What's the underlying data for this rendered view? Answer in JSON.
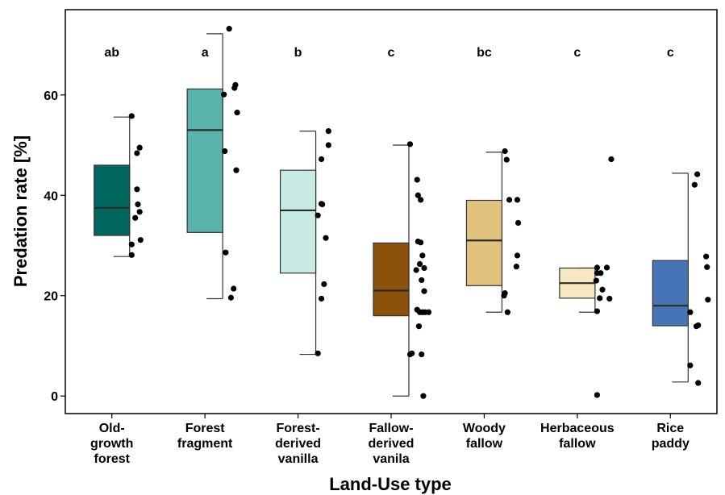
{
  "chart_data": {
    "type": "box",
    "ylabel": "Predation  rate [%]",
    "xlabel": "Land-Use type",
    "ylim": [
      -3.5,
      77
    ],
    "yticks": [
      0,
      20,
      40,
      60
    ],
    "grid": false,
    "legend": "none",
    "categories": [
      {
        "label": [
          "Old-",
          "growth",
          "forest"
        ],
        "letter": "ab",
        "color": "#01665e",
        "box": {
          "min": 27.8,
          "q1": 32,
          "median": 37.5,
          "q3": 46,
          "max": 55.6
        },
        "points": [
          [
            1.06,
            55.8
          ],
          [
            1.12,
            48.4
          ],
          [
            1.15,
            49.5
          ],
          [
            1.12,
            41.2
          ],
          [
            1.13,
            38.2
          ],
          [
            1.1,
            35.5
          ],
          [
            1.15,
            36.7
          ],
          [
            1.06,
            30.2
          ],
          [
            1.06,
            28.1
          ],
          [
            1.16,
            31.1
          ]
        ]
      },
      {
        "label": [
          "Forest",
          "fragment"
        ],
        "letter": "a",
        "color": "#5ab4ac",
        "box": {
          "min": 19.4,
          "q1": 32.6,
          "median": 53,
          "q3": 61.2,
          "max": 72.2
        },
        "points": [
          [
            1.11,
            73.2
          ],
          [
            1.05,
            60.1
          ],
          [
            1.17,
            61.4
          ],
          [
            1.18,
            62
          ],
          [
            1.2,
            56.5
          ],
          [
            1.06,
            48.8
          ],
          [
            1.19,
            45
          ],
          [
            1.07,
            28.6
          ],
          [
            1.16,
            21.4
          ],
          [
            1.13,
            19.6
          ]
        ]
      },
      {
        "label": [
          "Forest-",
          "derived",
          "vanilla"
        ],
        "letter": "b",
        "color": "#c7eae5",
        "box": {
          "min": 8.3,
          "q1": 24.5,
          "median": 37,
          "q3": 45,
          "max": 52.8
        },
        "points": [
          [
            1.18,
            52.8
          ],
          [
            1.18,
            50
          ],
          [
            1.1,
            47.2
          ],
          [
            1.1,
            38.3
          ],
          [
            1.11,
            38.2
          ],
          [
            1.06,
            36
          ],
          [
            1.15,
            31.5
          ],
          [
            1.13,
            22.3
          ],
          [
            1.1,
            19.4
          ],
          [
            1.06,
            8.5
          ]
        ]
      },
      {
        "label": [
          "Fallow-",
          "derived",
          "vanila"
        ],
        "letter": "c",
        "color": "#8c510a",
        "box": {
          "min": 0,
          "q1": 16,
          "median": 21,
          "q3": 30.5,
          "max": 50
        },
        "points": [
          [
            1.05,
            50.2
          ],
          [
            1.13,
            43.1
          ],
          [
            1.14,
            40
          ],
          [
            1.17,
            39.1
          ],
          [
            1.14,
            30.8
          ],
          [
            1.17,
            30.6
          ],
          [
            1.19,
            28
          ],
          [
            1.16,
            26.3
          ],
          [
            1.21,
            25.5
          ],
          [
            1.12,
            25.1
          ],
          [
            1.18,
            23.1
          ],
          [
            1.21,
            20.9
          ],
          [
            1.13,
            17.2
          ],
          [
            1.16,
            16.7
          ],
          [
            1.19,
            16.7
          ],
          [
            1.22,
            16.7
          ],
          [
            1.26,
            16.7
          ],
          [
            1.15,
            13.9
          ],
          [
            1.07,
            8.5
          ],
          [
            1.05,
            8.3
          ],
          [
            1.18,
            8.3
          ],
          [
            1.2,
            0
          ]
        ]
      },
      {
        "label": [
          "Woody",
          "fallow"
        ],
        "letter": "bc",
        "color": "#dfc27d",
        "box": {
          "min": 16.7,
          "q1": 22,
          "median": 31,
          "q3": 39,
          "max": 48.6
        },
        "points": [
          [
            1.07,
            48.8
          ],
          [
            1.09,
            47.1
          ],
          [
            1.12,
            39.1
          ],
          [
            1.21,
            39.1
          ],
          [
            1.22,
            34.5
          ],
          [
            1.21,
            28
          ],
          [
            1.2,
            25.8
          ],
          [
            1.07,
            20.5
          ],
          [
            1.06,
            20
          ],
          [
            1.1,
            16.7
          ]
        ]
      },
      {
        "label": [
          "Herbaceous",
          "fallow"
        ],
        "letter": "c",
        "color": "#f6e8c3",
        "box": {
          "min": 16.7,
          "q1": 19.5,
          "median": 22.5,
          "q3": 25.5,
          "max": 25.5
        },
        "points": [
          [
            1.22,
            47.2
          ],
          [
            1.06,
            25.6
          ],
          [
            1.06,
            24.5
          ],
          [
            1.1,
            24.5
          ],
          [
            1.17,
            25.6
          ],
          [
            1.05,
            23
          ],
          [
            1.12,
            21.2
          ],
          [
            1.2,
            19.4
          ],
          [
            1.09,
            19.5
          ],
          [
            1.06,
            16.9
          ],
          [
            1.06,
            0.2
          ]
        ]
      },
      {
        "label": [
          "Rice",
          "paddy"
        ],
        "letter": "c",
        "color": "#4575b4",
        "box": {
          "min": 2.8,
          "q1": 14,
          "median": 18,
          "q3": 27,
          "max": 44.4
        },
        "points": [
          [
            1.14,
            44.2
          ],
          [
            1.11,
            42.1
          ],
          [
            1.24,
            27.8
          ],
          [
            1.25,
            25.7
          ],
          [
            1.26,
            19.2
          ],
          [
            1.06,
            16.7
          ],
          [
            1.13,
            13.9
          ],
          [
            1.15,
            14.1
          ],
          [
            1.06,
            6.1
          ],
          [
            1.15,
            2.6
          ]
        ]
      }
    ]
  }
}
